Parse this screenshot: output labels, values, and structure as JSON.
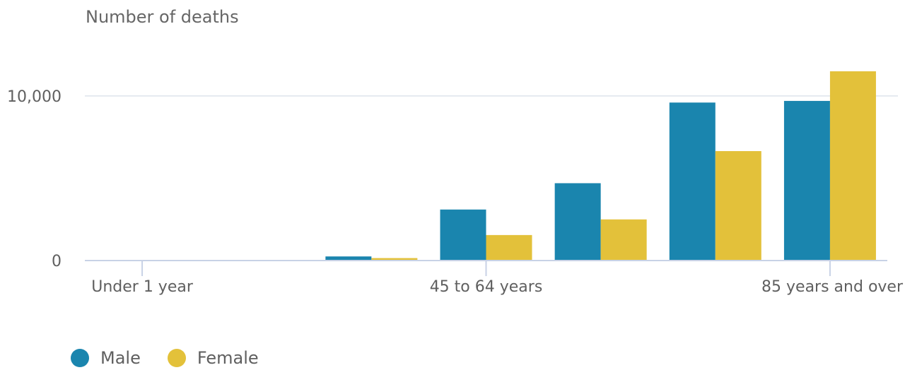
{
  "chart_data": {
    "type": "bar",
    "ylabel": "Number of deaths",
    "categories": [
      "Under 1 year",
      "",
      "",
      "45 to 64 years",
      "",
      "",
      "85 years and over"
    ],
    "series": [
      {
        "name": "Male",
        "color": "#1a85ae",
        "values": [
          0,
          0,
          250,
          3100,
          4700,
          9600,
          9700
        ]
      },
      {
        "name": "Female",
        "color": "#e3c13a",
        "values": [
          0,
          0,
          150,
          1550,
          2500,
          6650,
          11500
        ]
      }
    ],
    "yticks": [
      0,
      10000
    ],
    "ytick_labels": [
      "0",
      "10,000"
    ],
    "ylim": [
      0,
      13000
    ],
    "grid": true,
    "legend_position": "bottom-left"
  },
  "legend": {
    "male_label": "Male",
    "female_label": "Female"
  }
}
